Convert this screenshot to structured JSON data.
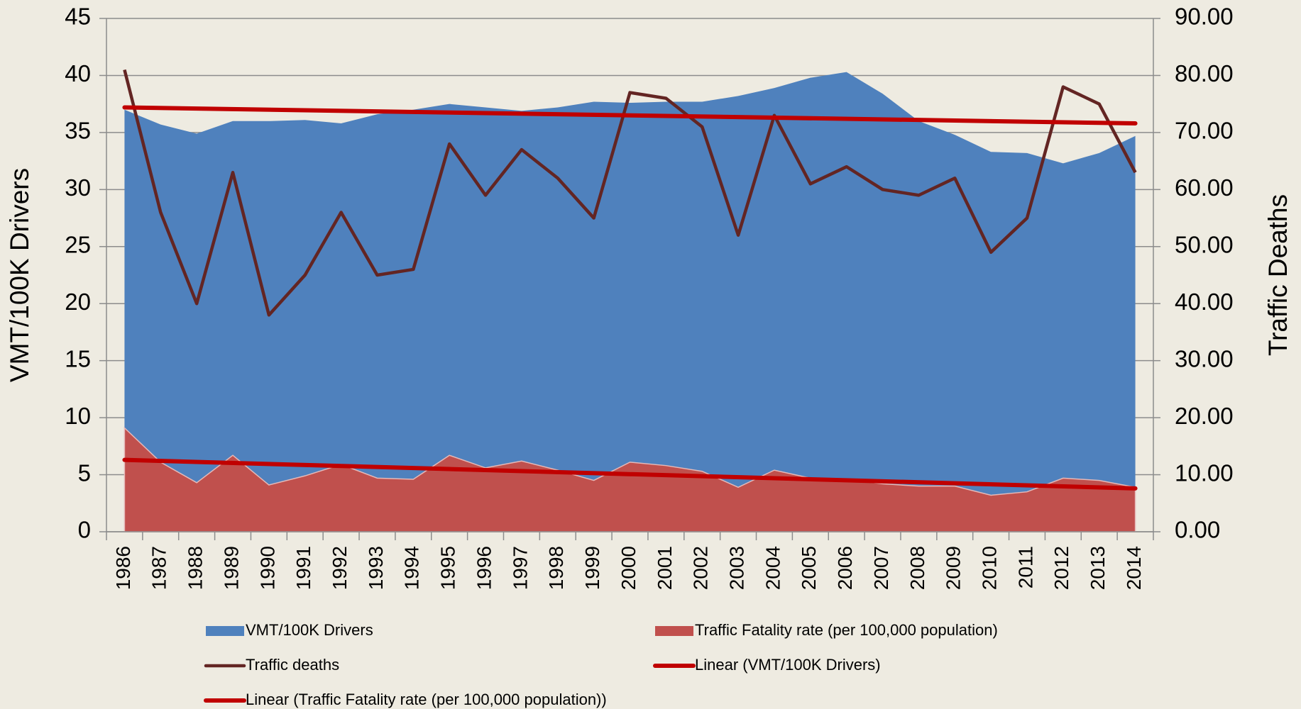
{
  "chart_data": {
    "type": "area",
    "y_label": "VMT/100K Drivers",
    "y2_label": "Traffic Deaths",
    "categories": [
      "1986",
      "1987",
      "1988",
      "1989",
      "1990",
      "1991",
      "1992",
      "1993",
      "1994",
      "1995",
      "1996",
      "1997",
      "1998",
      "1999",
      "2000",
      "2001",
      "2002",
      "2003",
      "2004",
      "2005",
      "2006",
      "2007",
      "2008",
      "2009",
      "2010",
      "2011",
      "2012",
      "2013",
      "2014"
    ],
    "series": [
      {
        "name": "VMT/100K Drivers",
        "kind": "area",
        "color": "#4f81bd",
        "values": [
          37.0,
          35.7,
          34.9,
          36.0,
          36.0,
          36.1,
          35.8,
          36.6,
          37.0,
          37.5,
          37.2,
          36.9,
          37.2,
          37.7,
          37.6,
          37.7,
          37.7,
          38.2,
          38.9,
          39.8,
          40.3,
          38.4,
          36.0,
          34.8,
          33.3,
          33.2,
          32.3,
          33.2,
          34.7
        ]
      },
      {
        "name": "Traffic Fatality rate (per 100,000 population)",
        "kind": "area",
        "color": "#c0504d",
        "values": [
          9.1,
          6.1,
          4.3,
          6.7,
          4.1,
          4.9,
          5.9,
          4.7,
          4.6,
          6.7,
          5.6,
          6.2,
          5.4,
          4.5,
          6.1,
          5.8,
          5.3,
          3.9,
          5.4,
          4.7,
          4.6,
          4.2,
          4.0,
          4.0,
          3.2,
          3.5,
          4.7,
          4.5,
          3.9
        ]
      },
      {
        "name": "Traffic deaths",
        "kind": "line",
        "axis": "y2",
        "color": "#632523",
        "values": [
          81,
          56,
          40,
          63,
          38,
          45,
          56,
          45,
          46,
          68,
          59,
          67,
          62,
          55,
          77,
          76,
          71,
          52,
          73,
          61,
          64,
          60,
          59,
          62,
          49,
          55,
          78,
          75,
          63
        ]
      }
    ],
    "trendlines": [
      {
        "name": "Linear (VMT/100K Drivers)",
        "color": "#c00000",
        "values": [
          37.2,
          35.8
        ]
      },
      {
        "name": "Linear (Traffic Fatality rate (per 100,000 population))",
        "color": "#c00000",
        "values": [
          6.3,
          3.8
        ]
      }
    ],
    "ylim": [
      0,
      45
    ],
    "yticks": [
      0,
      5,
      10,
      15,
      20,
      25,
      30,
      35,
      40,
      45
    ],
    "y2lim": [
      0,
      90
    ],
    "y2ticks": [
      {
        "value": 0,
        "label": "0.00"
      },
      {
        "value": 10,
        "label": "10.00"
      },
      {
        "value": 20,
        "label": "20.00"
      },
      {
        "value": 30,
        "label": "30.00"
      },
      {
        "value": 40,
        "label": "40.00"
      },
      {
        "value": 50,
        "label": "50.00"
      },
      {
        "value": 60,
        "label": "60.00"
      },
      {
        "value": 70,
        "label": "70.00"
      },
      {
        "value": 80,
        "label": "80.00"
      },
      {
        "value": 90,
        "label": "90.00"
      }
    ],
    "grid": true,
    "legend": "bottom"
  }
}
